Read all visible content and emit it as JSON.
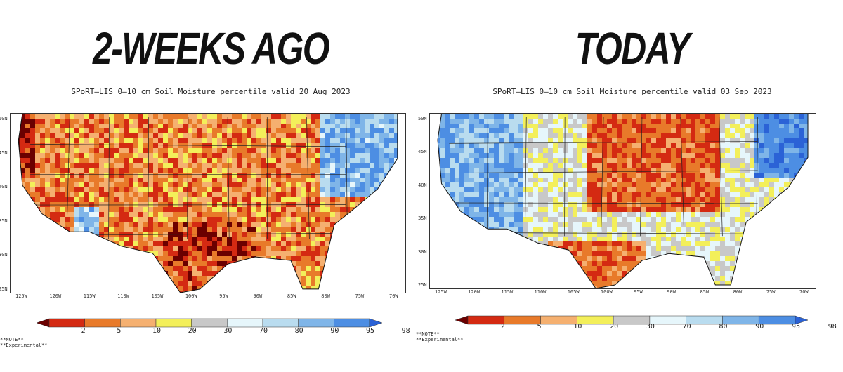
{
  "panels": [
    {
      "heading": "2-WEEKS AGO",
      "map_title": "SPoRT—LIS 0—10 cm Soil Moisture percentile valid 20 Aug 2023",
      "dominant": "dry"
    },
    {
      "heading": "TODAY",
      "map_title": "SPoRT—LIS 0—10 cm Soil Moisture percentile valid 03 Sep 2023",
      "dominant": "split"
    }
  ],
  "lat_labels": [
    "50N",
    "45N",
    "40N",
    "35N",
    "30N",
    "25N"
  ],
  "lon_labels": [
    "125W",
    "120W",
    "115W",
    "110W",
    "105W",
    "100W",
    "95W",
    "90W",
    "85W",
    "80W",
    "75W",
    "70W"
  ],
  "colorbar": {
    "labels": [
      "2",
      "5",
      "10",
      "20",
      "30",
      "70",
      "80",
      "90",
      "95",
      "98"
    ],
    "colors": [
      "#6b0000",
      "#d42a12",
      "#e87a2a",
      "#f5b070",
      "#f3ef5a",
      "#c8c8c8",
      "#e6f6fb",
      "#b9dcef",
      "#7fb5e8",
      "#4d8ee3",
      "#2b62d6"
    ]
  },
  "notes": {
    "line1": "**NOTE**",
    "line2": "**Experimental**"
  }
}
